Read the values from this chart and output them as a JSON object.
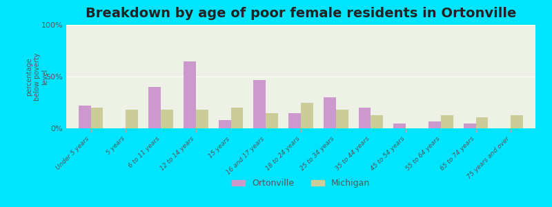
{
  "title": "Breakdown by age of poor female residents in Ortonville",
  "ylabel": "percentage\nbelow poverty\nlevel",
  "categories": [
    "Under 5 years",
    "5 years",
    "6 to 11 years",
    "12 to 14 years",
    "15 years",
    "16 and 17 years",
    "18 to 24 years",
    "25 to 34 years",
    "35 to 44 years",
    "45 to 54 years",
    "55 to 64 years",
    "65 to 74 years",
    "75 years and over"
  ],
  "ortonville_values": [
    22,
    0,
    40,
    65,
    8,
    47,
    15,
    30,
    20,
    5,
    7,
    5,
    0
  ],
  "michigan_values": [
    20,
    18,
    18,
    18,
    20,
    15,
    25,
    18,
    13,
    0,
    13,
    11,
    13
  ],
  "ortonville_color": "#cc99cc",
  "michigan_color": "#cccc99",
  "plot_bg": "#eef2e6",
  "outer_bg": "#00e5ff",
  "ylim": [
    0,
    100
  ],
  "yticks": [
    0,
    50,
    100
  ],
  "ytick_labels": [
    "0%",
    "50%",
    "100%"
  ],
  "title_fontsize": 14,
  "legend_labels": [
    "Ortonville",
    "Michigan"
  ],
  "bar_width": 0.35
}
